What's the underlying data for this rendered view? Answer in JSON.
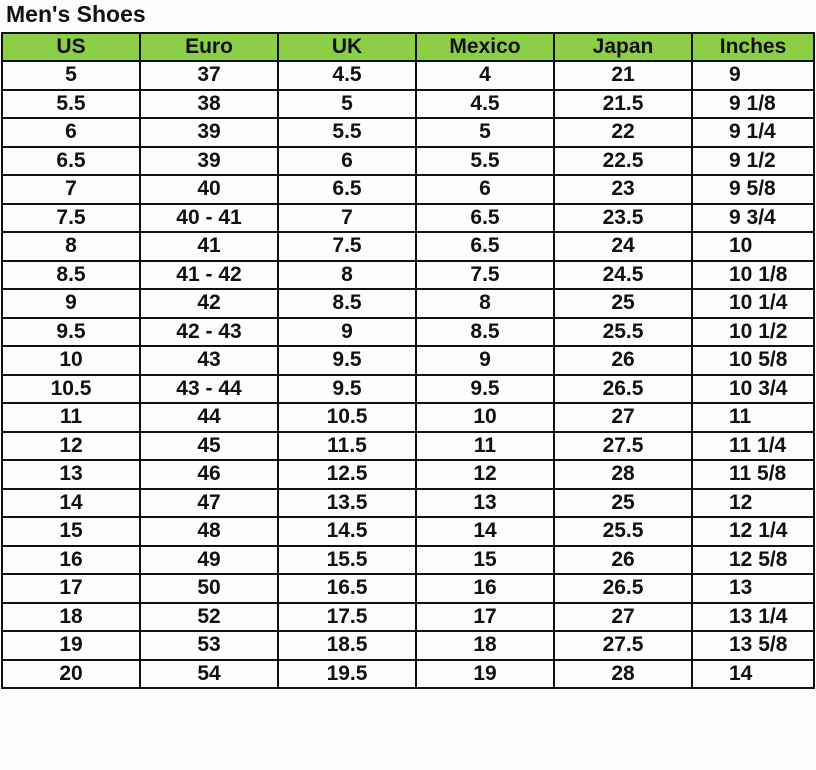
{
  "title": "Men's Shoes",
  "colors": {
    "header_bg": "#8ccf47",
    "border": "#111111"
  },
  "columns": [
    "US",
    "Euro",
    "UK",
    "Mexico",
    "Japan",
    "Inches"
  ],
  "rows": [
    [
      "5",
      "37",
      "4.5",
      "4",
      "21",
      "9"
    ],
    [
      "5.5",
      "38",
      "5",
      "4.5",
      "21.5",
      "9 1/8"
    ],
    [
      "6",
      "39",
      "5.5",
      "5",
      "22",
      "9 1/4"
    ],
    [
      "6.5",
      "39",
      "6",
      "5.5",
      "22.5",
      "9 1/2"
    ],
    [
      "7",
      "40",
      "6.5",
      "6",
      "23",
      "9 5/8"
    ],
    [
      "7.5",
      "40 - 41",
      "7",
      "6.5",
      "23.5",
      "9 3/4"
    ],
    [
      "8",
      "41",
      "7.5",
      "6.5",
      "24",
      "10"
    ],
    [
      "8.5",
      "41 - 42",
      "8",
      "7.5",
      "24.5",
      "10 1/8"
    ],
    [
      "9",
      "42",
      "8.5",
      "8",
      "25",
      "10 1/4"
    ],
    [
      "9.5",
      "42 - 43",
      "9",
      "8.5",
      "25.5",
      "10 1/2"
    ],
    [
      "10",
      "43",
      "9.5",
      "9",
      "26",
      "10 5/8"
    ],
    [
      "10.5",
      "43 - 44",
      "9.5",
      "9.5",
      "26.5",
      "10 3/4"
    ],
    [
      "11",
      "44",
      "10.5",
      "10",
      "27",
      "11"
    ],
    [
      "12",
      "45",
      "11.5",
      "11",
      "27.5",
      "11 1/4"
    ],
    [
      "13",
      "46",
      "12.5",
      "12",
      "28",
      "11 5/8"
    ],
    [
      "14",
      "47",
      "13.5",
      "13",
      "25",
      "12"
    ],
    [
      "15",
      "48",
      "14.5",
      "14",
      "25.5",
      "12 1/4"
    ],
    [
      "16",
      "49",
      "15.5",
      "15",
      "26",
      "12 5/8"
    ],
    [
      "17",
      "50",
      "16.5",
      "16",
      "26.5",
      "13"
    ],
    [
      "18",
      "52",
      "17.5",
      "17",
      "27",
      "13 1/4"
    ],
    [
      "19",
      "53",
      "18.5",
      "18",
      "27.5",
      "13 5/8"
    ],
    [
      "20",
      "54",
      "19.5",
      "19",
      "28",
      "14"
    ]
  ]
}
